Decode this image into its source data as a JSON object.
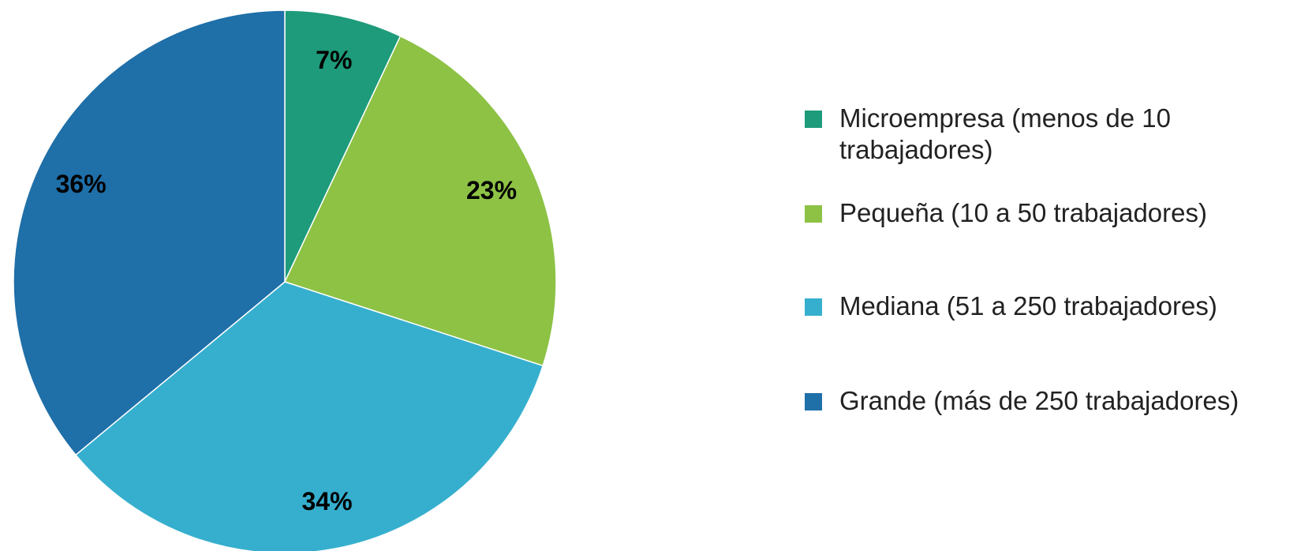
{
  "chart_data": {
    "type": "pie",
    "categories": [
      "Microempresa (menos de 10 trabajadores)",
      "Pequeña (10 a 50 trabajadores)",
      "Mediana (51 a 250 trabajadores)",
      "Grande (más de 250 trabajadores)"
    ],
    "values": [
      7,
      23,
      34,
      36
    ],
    "value_labels": [
      "7%",
      "23%",
      "34%",
      "36%"
    ],
    "colors": [
      "#1e9b7a",
      "#8dc245",
      "#36afce",
      "#1f6fa8"
    ],
    "legend": "right"
  }
}
